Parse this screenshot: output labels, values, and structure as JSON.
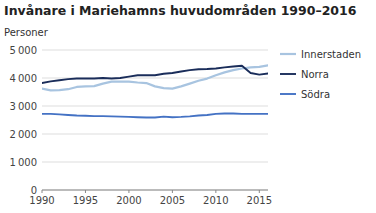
{
  "chart_data": {
    "type": "line",
    "title": "Invånare i Mariehamns huvudområden 1990–2016",
    "y_label": "Personer",
    "x": [
      1990,
      1991,
      1992,
      1993,
      1994,
      1995,
      1996,
      1997,
      1998,
      1999,
      2000,
      2001,
      2002,
      2003,
      2004,
      2005,
      2006,
      2007,
      2008,
      2009,
      2010,
      2011,
      2012,
      2013,
      2014,
      2015,
      2016
    ],
    "series": [
      {
        "name": "Innerstaden",
        "color": "#a8c4e0",
        "values": [
          3620,
          3560,
          3570,
          3600,
          3680,
          3700,
          3710,
          3800,
          3870,
          3870,
          3870,
          3840,
          3820,
          3700,
          3640,
          3620,
          3700,
          3800,
          3900,
          3980,
          4100,
          4200,
          4280,
          4340,
          4380,
          4400,
          4450
        ]
      },
      {
        "name": "Norra",
        "color": "#1a2d5a",
        "values": [
          3820,
          3880,
          3920,
          3960,
          3980,
          3980,
          3980,
          4000,
          3980,
          4000,
          4050,
          4100,
          4100,
          4100,
          4150,
          4180,
          4230,
          4280,
          4310,
          4320,
          4340,
          4380,
          4410,
          4440,
          4180,
          4120,
          4160
        ]
      },
      {
        "name": "Södra",
        "color": "#4472c4",
        "values": [
          2720,
          2720,
          2700,
          2680,
          2660,
          2650,
          2640,
          2640,
          2630,
          2620,
          2610,
          2600,
          2590,
          2590,
          2620,
          2600,
          2610,
          2630,
          2660,
          2680,
          2720,
          2730,
          2730,
          2720,
          2720,
          2720,
          2720
        ]
      }
    ],
    "xlim": [
      1990,
      2016
    ],
    "xticks": [
      1990,
      1995,
      2000,
      2005,
      2010,
      2015
    ],
    "ylim": [
      0,
      5000
    ],
    "yticks": [
      0,
      {
        "value": 1000,
        "label": "1 000"
      },
      {
        "value": 2000,
        "label": "2 000"
      },
      {
        "value": 3000,
        "label": "3 000"
      },
      {
        "value": 4000,
        "label": "4 000"
      },
      {
        "value": 5000,
        "label": "5 000"
      }
    ],
    "grid": true,
    "legend": "right"
  }
}
